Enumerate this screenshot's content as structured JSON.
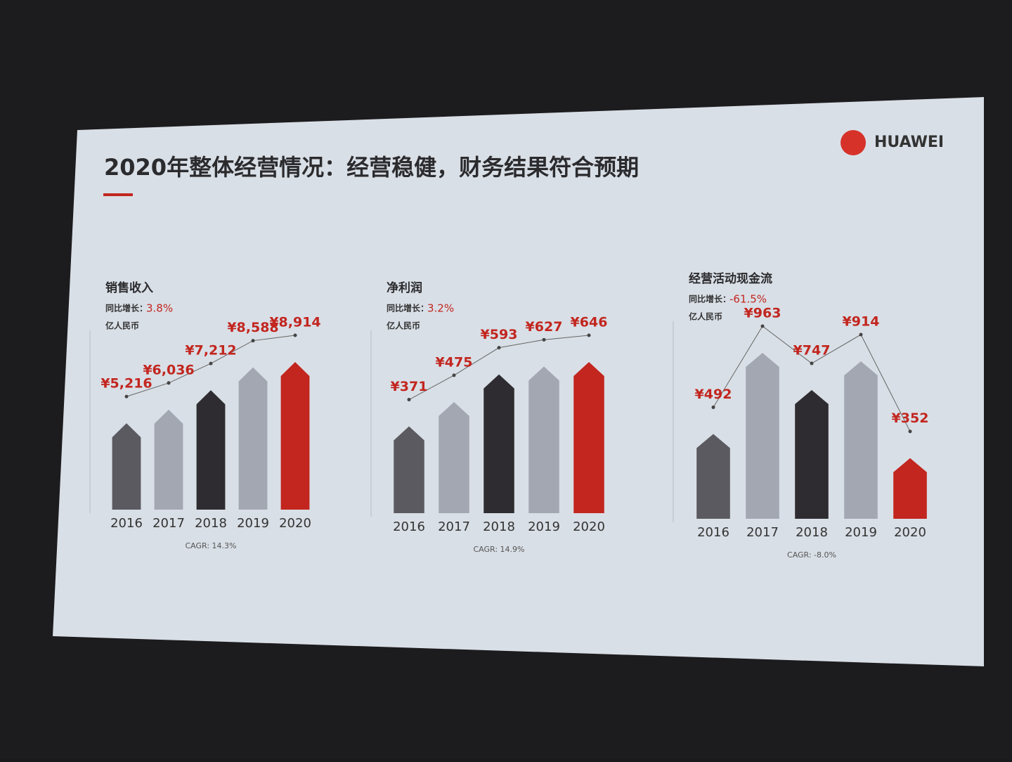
{
  "title": "2020年整体经营情况：经营稳健，财务结果符合预期",
  "brand": "HUAWEI",
  "chart_data": [
    {
      "type": "bar",
      "title": "销售收入",
      "growth_label": "同比增长：",
      "growth": "3.8%",
      "unit": "亿人民币",
      "categories": [
        "2016",
        "2017",
        "2018",
        "2019",
        "2020"
      ],
      "values": [
        5216,
        6036,
        7212,
        8588,
        8914
      ],
      "value_labels": [
        "¥5,216",
        "¥6,036",
        "¥7,212",
        "¥8,588",
        "¥8,914"
      ],
      "colors": [
        "#5a5a60",
        "#a3a7b2",
        "#2e2c30",
        "#a3a7b2",
        "#c2261f"
      ],
      "note": "CAGR: 14.3%"
    },
    {
      "type": "bar",
      "title": "净利润",
      "growth_label": "同比增长：",
      "growth": "3.2%",
      "unit": "亿人民币",
      "categories": [
        "2016",
        "2017",
        "2018",
        "2019",
        "2020"
      ],
      "values": [
        371,
        475,
        593,
        627,
        646
      ],
      "value_labels": [
        "¥371",
        "¥475",
        "¥593",
        "¥627",
        "¥646"
      ],
      "colors": [
        "#5a5a60",
        "#a3a7b2",
        "#2e2c30",
        "#a3a7b2",
        "#c2261f"
      ],
      "note": "CAGR: 14.9%"
    },
    {
      "type": "bar",
      "title": "经营活动现金流",
      "growth_label": "同比增长：",
      "growth": "-61.5%",
      "unit": "亿人民币",
      "categories": [
        "2016",
        "2017",
        "2018",
        "2019",
        "2020"
      ],
      "values": [
        492,
        963,
        747,
        914,
        352
      ],
      "value_labels": [
        "¥492",
        "¥963",
        "¥747",
        "¥914",
        "¥352"
      ],
      "colors": [
        "#5a5a60",
        "#a3a7b2",
        "#2e2c30",
        "#a3a7b2",
        "#c2261f"
      ],
      "note": "CAGR: -8.0%"
    }
  ]
}
